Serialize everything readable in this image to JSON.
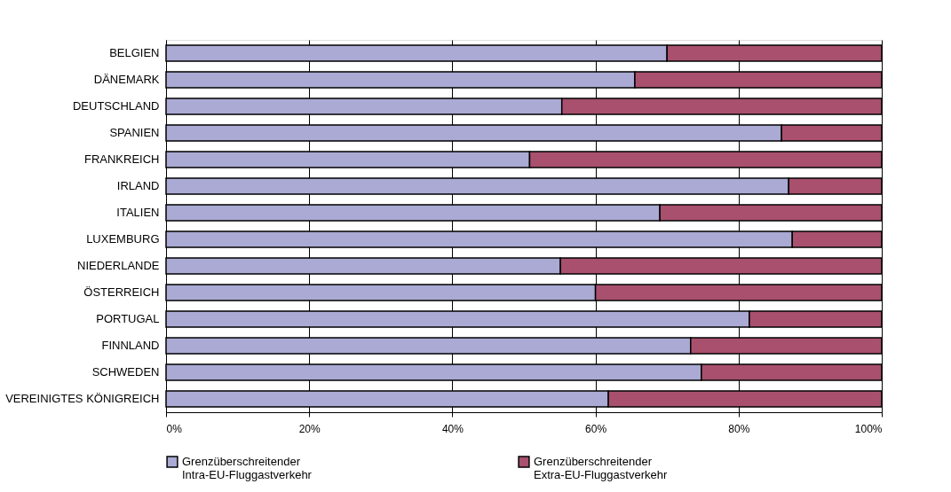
{
  "chart_data": {
    "type": "bar",
    "orientation": "horizontal",
    "stacked": true,
    "categories": [
      "BELGIEN",
      "DÄNEMARK",
      "DEUTSCHLAND",
      "SPANIEN",
      "FRANKREICH",
      "IRLAND",
      "ITALIEN",
      "LUXEMBURG",
      "NIEDERLANDE",
      "ÖSTERREICH",
      "PORTUGAL",
      "FINNLAND",
      "SCHWEDEN",
      "VEREINIGTES KÖNIGREICH"
    ],
    "series": [
      {
        "name": "Grenzüberschreitender\nIntra-EU-Fluggastverkehr",
        "color": "#aaaad4",
        "values": [
          70,
          65.5,
          55.3,
          86,
          50.8,
          87,
          69,
          87.5,
          55.1,
          60,
          81.5,
          73.3,
          74.8,
          61.8
        ]
      },
      {
        "name": "Grenzüberschreitender\nExtra-EU-Fluggastverkehr",
        "color": "#a8506e",
        "values": [
          30,
          34.5,
          44.7,
          14,
          49.2,
          13,
          31,
          12.5,
          44.9,
          40,
          18.5,
          26.7,
          25.2,
          38.2
        ]
      }
    ],
    "xlim": [
      0,
      100
    ],
    "xticks": [
      {
        "value": 0,
        "label": "0%"
      },
      {
        "value": 20,
        "label": "20%"
      },
      {
        "value": 40,
        "label": "40%"
      },
      {
        "value": 60,
        "label": "60%"
      },
      {
        "value": 80,
        "label": "80%"
      },
      {
        "value": 100,
        "label": "100%"
      }
    ],
    "grid": "x",
    "legend": "bottom"
  }
}
